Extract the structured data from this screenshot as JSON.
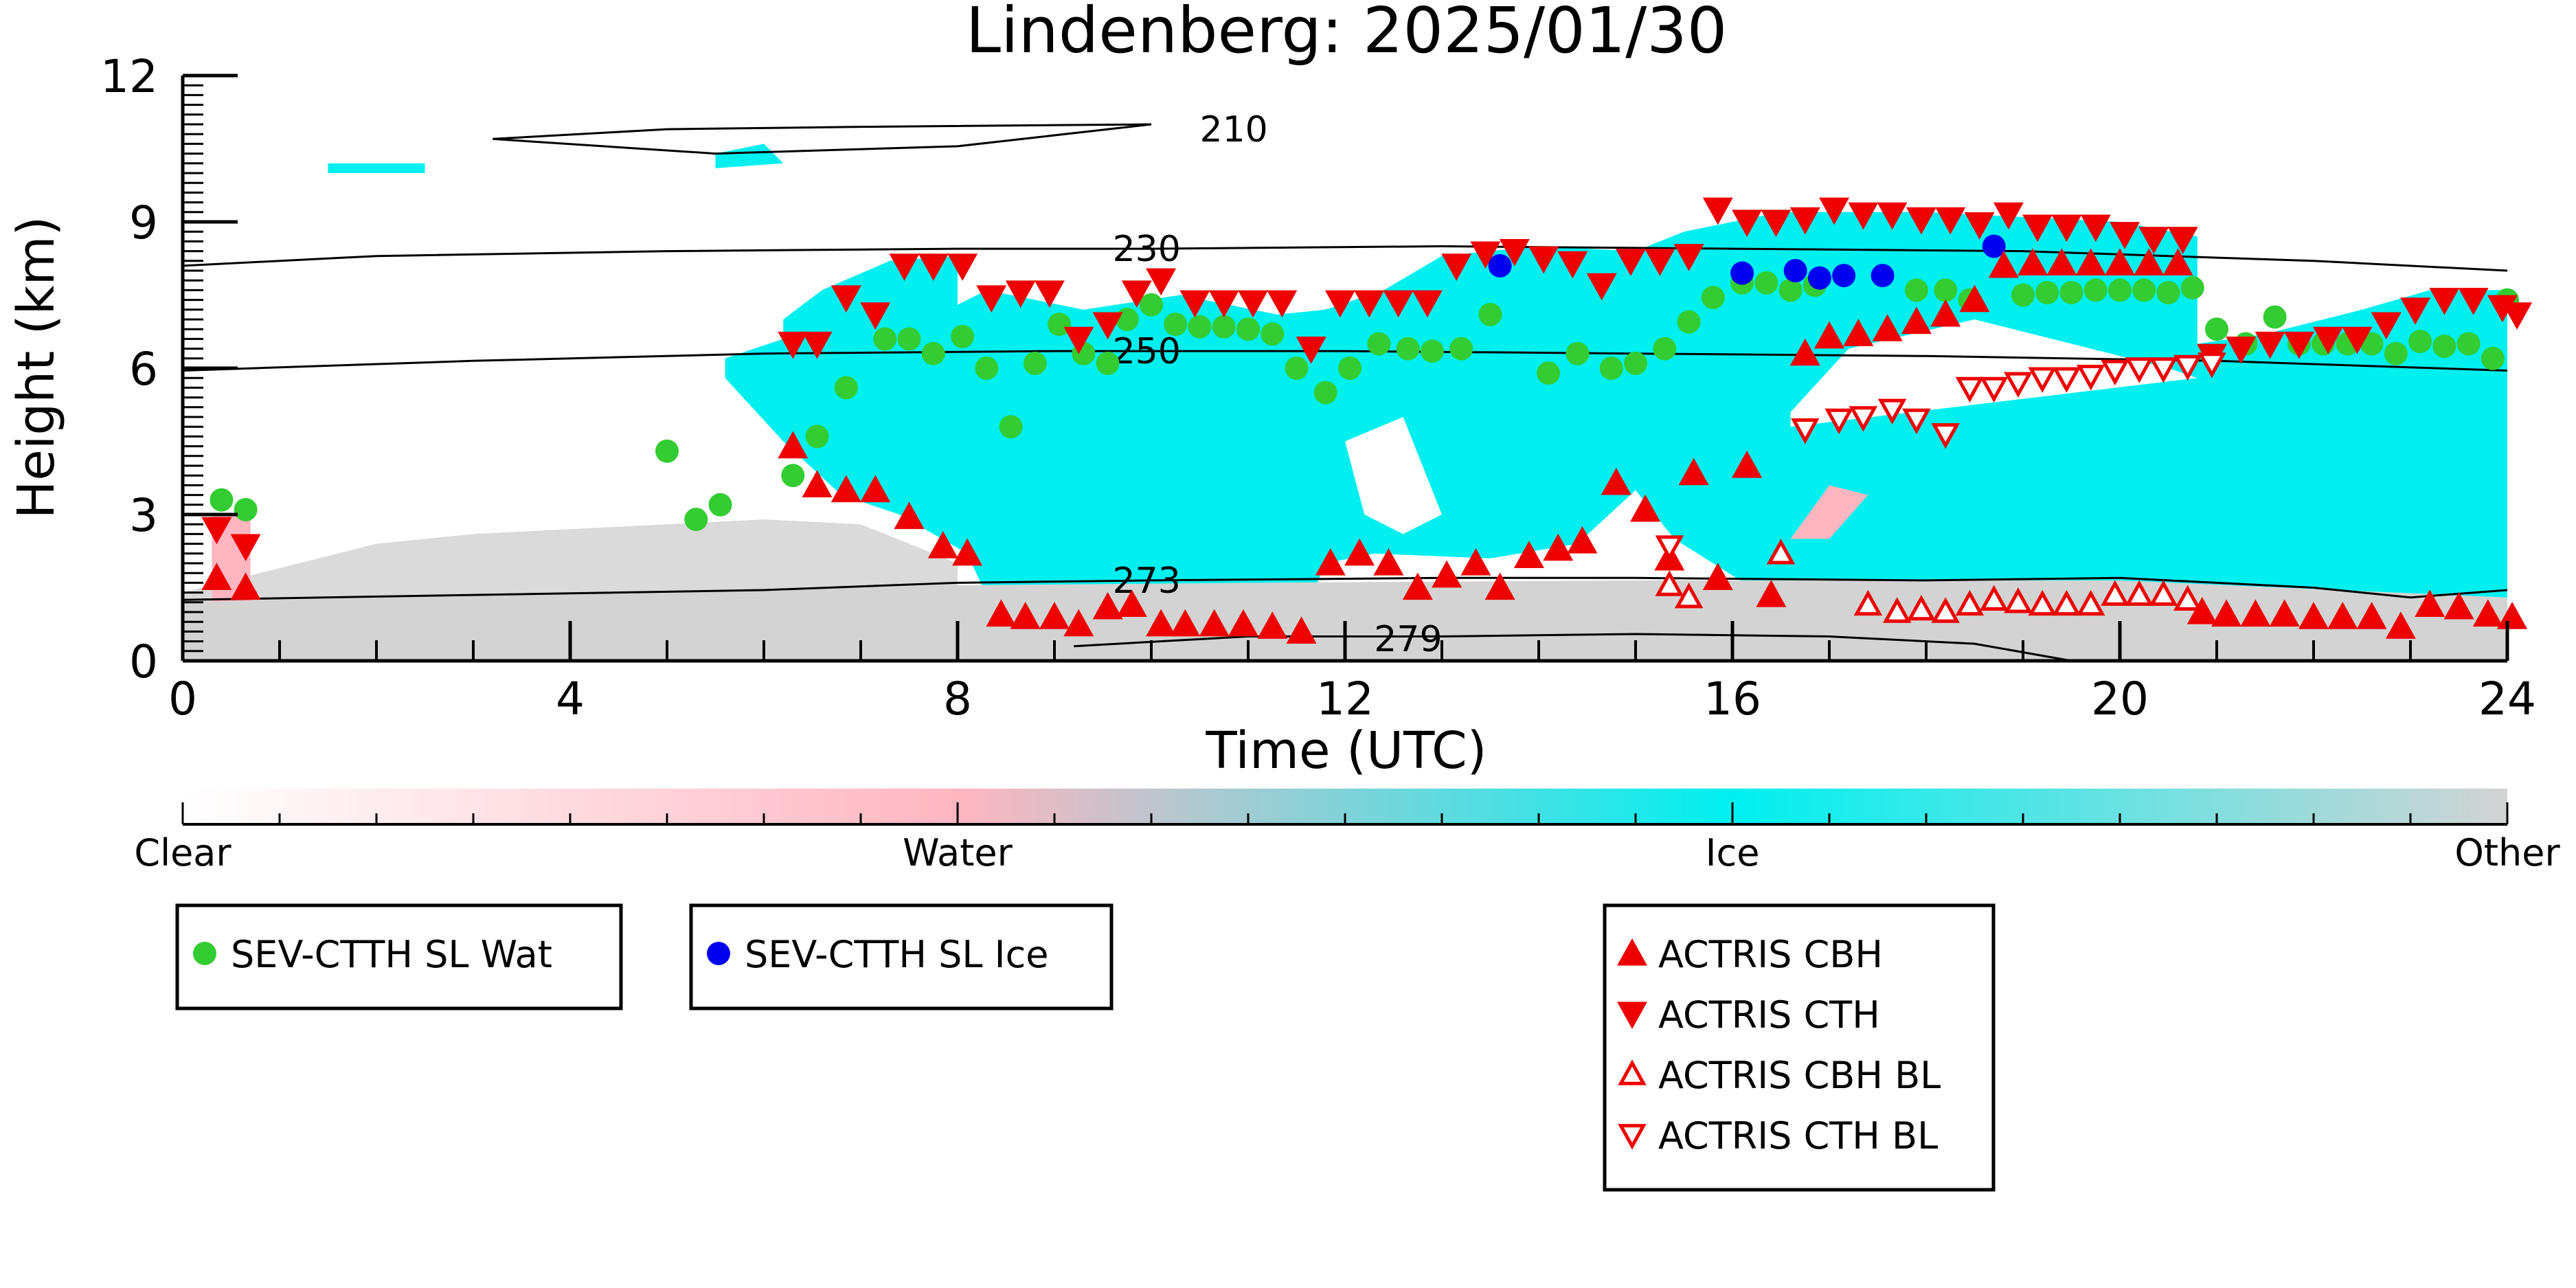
{
  "chart_data": {
    "type": "scatter",
    "title": "Lindenberg: 2025/01/30",
    "xlabel": "Time (UTC)",
    "ylabel": "Height (km)",
    "xlim": [
      0,
      24
    ],
    "ylim": [
      0,
      12
    ],
    "x_ticks": [
      "0",
      "4",
      "8",
      "12",
      "16",
      "20",
      "24"
    ],
    "y_ticks": [
      "0",
      "3",
      "6",
      "9",
      "12"
    ],
    "colorbar": {
      "labels": [
        "Clear",
        "Water",
        "Ice",
        "Other"
      ],
      "colors": [
        "#ffffff",
        "#ffb6c1",
        "#00f0f0",
        "#d3d3d3"
      ]
    },
    "contours": [
      {
        "label": "210",
        "points": [
          [
            3.2,
            10.7
          ],
          [
            5,
            10.9
          ],
          [
            7,
            10.95
          ],
          [
            10,
            11.0
          ],
          [
            8,
            10.55
          ],
          [
            5.5,
            10.4
          ],
          [
            3.2,
            10.7
          ]
        ],
        "label_at": [
          10.5,
          10.9
        ]
      },
      {
        "label": "230",
        "points": [
          [
            0,
            8.1
          ],
          [
            2,
            8.3
          ],
          [
            5,
            8.4
          ],
          [
            8,
            8.45
          ],
          [
            10,
            8.45
          ],
          [
            13,
            8.5
          ],
          [
            16,
            8.45
          ],
          [
            19,
            8.4
          ],
          [
            22,
            8.2
          ],
          [
            24,
            8.0
          ]
        ],
        "label_at": [
          9.6,
          8.45
        ]
      },
      {
        "label": "250",
        "points": [
          [
            0,
            5.95
          ],
          [
            3,
            6.15
          ],
          [
            6,
            6.3
          ],
          [
            9,
            6.35
          ],
          [
            12,
            6.35
          ],
          [
            15,
            6.3
          ],
          [
            18,
            6.25
          ],
          [
            21,
            6.15
          ],
          [
            24,
            5.95
          ]
        ],
        "label_at": [
          9.6,
          6.35
        ]
      },
      {
        "label": "273",
        "points": [
          [
            0,
            1.25
          ],
          [
            3,
            1.35
          ],
          [
            6,
            1.45
          ],
          [
            8,
            1.6
          ],
          [
            10,
            1.65
          ],
          [
            13,
            1.7
          ],
          [
            15,
            1.7
          ],
          [
            18,
            1.65
          ],
          [
            20,
            1.7
          ],
          [
            22,
            1.5
          ],
          [
            23,
            1.3
          ],
          [
            24,
            1.45
          ]
        ],
        "label_at": [
          9.6,
          1.65
        ]
      },
      {
        "label": "279",
        "points": [
          [
            9.2,
            0.3
          ],
          [
            11,
            0.5
          ],
          [
            13,
            0.5
          ],
          [
            15,
            0.55
          ],
          [
            17,
            0.5
          ],
          [
            18.5,
            0.35
          ],
          [
            19.5,
            0.0
          ]
        ],
        "label_at": [
          12.3,
          0.45
        ]
      }
    ],
    "series": [
      {
        "name": "SEV-CTTH SL Wat",
        "marker": "circle",
        "color": "#33cc33",
        "points": [
          [
            0.4,
            3.3
          ],
          [
            0.65,
            3.1
          ],
          [
            5.0,
            4.3
          ],
          [
            5.3,
            2.9
          ],
          [
            5.55,
            3.2
          ],
          [
            6.3,
            3.8
          ],
          [
            6.55,
            4.6
          ],
          [
            6.85,
            5.6
          ],
          [
            7.25,
            6.6
          ],
          [
            7.5,
            6.6
          ],
          [
            7.75,
            6.3
          ],
          [
            8.05,
            6.65
          ],
          [
            8.3,
            6.0
          ],
          [
            8.55,
            4.8
          ],
          [
            8.8,
            6.1
          ],
          [
            9.05,
            6.9
          ],
          [
            9.3,
            6.3
          ],
          [
            9.55,
            6.1
          ],
          [
            9.75,
            7.0
          ],
          [
            10.0,
            7.3
          ],
          [
            10.25,
            6.9
          ],
          [
            10.5,
            6.85
          ],
          [
            10.75,
            6.85
          ],
          [
            11.0,
            6.8
          ],
          [
            11.25,
            6.7
          ],
          [
            11.5,
            6.0
          ],
          [
            11.8,
            5.5
          ],
          [
            12.05,
            6.0
          ],
          [
            12.35,
            6.5
          ],
          [
            12.65,
            6.4
          ],
          [
            12.9,
            6.35
          ],
          [
            13.2,
            6.4
          ],
          [
            13.5,
            7.1
          ],
          [
            14.1,
            5.9
          ],
          [
            14.4,
            6.3
          ],
          [
            14.75,
            6.0
          ],
          [
            15.0,
            6.1
          ],
          [
            15.3,
            6.4
          ],
          [
            15.55,
            6.95
          ],
          [
            15.8,
            7.45
          ],
          [
            16.1,
            7.75
          ],
          [
            16.35,
            7.75
          ],
          [
            16.6,
            7.6
          ],
          [
            16.85,
            7.7
          ],
          [
            17.9,
            7.6
          ],
          [
            18.2,
            7.6
          ],
          [
            18.45,
            7.4
          ],
          [
            19.0,
            7.5
          ],
          [
            19.25,
            7.55
          ],
          [
            19.5,
            7.55
          ],
          [
            19.75,
            7.6
          ],
          [
            20.0,
            7.6
          ],
          [
            20.25,
            7.6
          ],
          [
            20.5,
            7.55
          ],
          [
            20.75,
            7.65
          ],
          [
            21.0,
            6.8
          ],
          [
            21.3,
            6.5
          ],
          [
            21.6,
            7.05
          ],
          [
            21.85,
            6.5
          ],
          [
            22.1,
            6.5
          ],
          [
            22.35,
            6.5
          ],
          [
            22.6,
            6.5
          ],
          [
            22.85,
            6.3
          ],
          [
            23.1,
            6.55
          ],
          [
            23.35,
            6.45
          ],
          [
            23.6,
            6.5
          ],
          [
            23.85,
            6.2
          ],
          [
            24.0,
            7.4
          ]
        ]
      },
      {
        "name": "SEV-CTTH SL Ice",
        "marker": "circle",
        "color": "#0000ee",
        "points": [
          [
            13.6,
            8.1
          ],
          [
            16.1,
            7.95
          ],
          [
            16.65,
            8.0
          ],
          [
            16.9,
            7.85
          ],
          [
            17.15,
            7.9
          ],
          [
            17.55,
            7.9
          ],
          [
            18.7,
            8.5
          ]
        ]
      },
      {
        "name": "ACTRIS CBH",
        "marker": "triangle-up",
        "color": "#ee0000",
        "points": [
          [
            0.35,
            1.7
          ],
          [
            0.65,
            1.5
          ],
          [
            6.3,
            4.4
          ],
          [
            6.55,
            3.6
          ],
          [
            6.85,
            3.5
          ],
          [
            7.15,
            3.5
          ],
          [
            7.5,
            2.95
          ],
          [
            7.85,
            2.35
          ],
          [
            8.1,
            2.2
          ],
          [
            8.45,
            0.95
          ],
          [
            8.7,
            0.9
          ],
          [
            9.0,
            0.9
          ],
          [
            9.25,
            0.75
          ],
          [
            9.55,
            1.1
          ],
          [
            9.8,
            1.15
          ],
          [
            10.1,
            0.75
          ],
          [
            10.35,
            0.75
          ],
          [
            10.65,
            0.75
          ],
          [
            10.95,
            0.75
          ],
          [
            11.25,
            0.7
          ],
          [
            11.55,
            0.6
          ],
          [
            11.85,
            2.0
          ],
          [
            12.15,
            2.2
          ],
          [
            12.45,
            2.0
          ],
          [
            12.75,
            1.5
          ],
          [
            13.05,
            1.75
          ],
          [
            13.35,
            2.0
          ],
          [
            13.6,
            1.5
          ],
          [
            13.9,
            2.15
          ],
          [
            14.2,
            2.3
          ],
          [
            14.45,
            2.45
          ],
          [
            14.8,
            3.65
          ],
          [
            15.1,
            3.1
          ],
          [
            15.35,
            2.1
          ],
          [
            15.6,
            3.85
          ],
          [
            15.85,
            1.7
          ],
          [
            16.15,
            4.0
          ],
          [
            16.4,
            1.35
          ],
          [
            16.75,
            6.3
          ],
          [
            17.0,
            6.65
          ],
          [
            17.3,
            6.7
          ],
          [
            17.6,
            6.8
          ],
          [
            17.9,
            6.95
          ],
          [
            18.2,
            7.1
          ],
          [
            18.5,
            7.4
          ],
          [
            18.8,
            8.1
          ],
          [
            19.1,
            8.15
          ],
          [
            19.4,
            8.15
          ],
          [
            19.7,
            8.15
          ],
          [
            20.0,
            8.15
          ],
          [
            20.3,
            8.15
          ],
          [
            20.6,
            8.15
          ],
          [
            20.85,
            1.0
          ],
          [
            21.1,
            0.95
          ],
          [
            21.4,
            0.95
          ],
          [
            21.7,
            0.95
          ],
          [
            22.0,
            0.9
          ],
          [
            22.3,
            0.9
          ],
          [
            22.6,
            0.9
          ],
          [
            22.9,
            0.7
          ],
          [
            23.2,
            1.15
          ],
          [
            23.5,
            1.1
          ],
          [
            23.8,
            0.95
          ],
          [
            24.05,
            0.9
          ]
        ]
      },
      {
        "name": "ACTRIS CTH",
        "marker": "triangle-down",
        "color": "#ee0000",
        "points": [
          [
            0.35,
            2.7
          ],
          [
            0.65,
            2.35
          ],
          [
            6.3,
            6.5
          ],
          [
            6.55,
            6.5
          ],
          [
            6.85,
            7.45
          ],
          [
            7.15,
            7.1
          ],
          [
            7.45,
            8.1
          ],
          [
            7.75,
            8.1
          ],
          [
            8.05,
            8.1
          ],
          [
            8.35,
            7.45
          ],
          [
            8.65,
            7.55
          ],
          [
            8.95,
            7.55
          ],
          [
            9.25,
            6.6
          ],
          [
            9.55,
            6.9
          ],
          [
            9.85,
            7.55
          ],
          [
            10.1,
            7.8
          ],
          [
            10.45,
            7.35
          ],
          [
            10.75,
            7.35
          ],
          [
            11.05,
            7.35
          ],
          [
            11.35,
            7.35
          ],
          [
            11.65,
            6.4
          ],
          [
            11.95,
            7.35
          ],
          [
            12.25,
            7.35
          ],
          [
            12.55,
            7.35
          ],
          [
            12.85,
            7.35
          ],
          [
            13.15,
            8.1
          ],
          [
            13.45,
            8.35
          ],
          [
            13.75,
            8.4
          ],
          [
            14.05,
            8.25
          ],
          [
            14.35,
            8.15
          ],
          [
            14.65,
            7.7
          ],
          [
            14.95,
            8.2
          ],
          [
            15.25,
            8.2
          ],
          [
            15.55,
            8.3
          ],
          [
            15.85,
            9.25
          ],
          [
            16.15,
            9.0
          ],
          [
            16.45,
            9.0
          ],
          [
            16.75,
            9.05
          ],
          [
            17.05,
            9.25
          ],
          [
            17.35,
            9.15
          ],
          [
            17.65,
            9.15
          ],
          [
            17.95,
            9.05
          ],
          [
            18.25,
            9.05
          ],
          [
            18.55,
            8.95
          ],
          [
            18.85,
            9.15
          ],
          [
            19.15,
            8.9
          ],
          [
            19.45,
            8.9
          ],
          [
            19.75,
            8.9
          ],
          [
            20.05,
            8.75
          ],
          [
            20.35,
            8.65
          ],
          [
            20.65,
            8.65
          ],
          [
            20.95,
            6.25
          ],
          [
            21.25,
            6.4
          ],
          [
            21.55,
            6.5
          ],
          [
            21.85,
            6.5
          ],
          [
            22.15,
            6.6
          ],
          [
            22.45,
            6.6
          ],
          [
            22.75,
            6.9
          ],
          [
            23.05,
            7.2
          ],
          [
            23.35,
            7.4
          ],
          [
            23.65,
            7.4
          ],
          [
            23.95,
            7.25
          ],
          [
            24.1,
            7.1
          ]
        ]
      },
      {
        "name": "ACTRIS CBH BL",
        "marker": "triangle-up-open",
        "color": "#ee0000",
        "points": [
          [
            15.35,
            1.55
          ],
          [
            15.55,
            1.3
          ],
          [
            16.5,
            2.2
          ],
          [
            17.4,
            1.15
          ],
          [
            17.7,
            1.0
          ],
          [
            17.95,
            1.05
          ],
          [
            18.2,
            1.0
          ],
          [
            18.45,
            1.15
          ],
          [
            18.7,
            1.25
          ],
          [
            18.95,
            1.2
          ],
          [
            19.2,
            1.15
          ],
          [
            19.45,
            1.15
          ],
          [
            19.7,
            1.15
          ],
          [
            19.95,
            1.35
          ],
          [
            20.2,
            1.35
          ],
          [
            20.45,
            1.35
          ],
          [
            20.7,
            1.25
          ]
        ]
      },
      {
        "name": "ACTRIS CTH BL",
        "marker": "triangle-down-open",
        "color": "#ee0000",
        "points": [
          [
            15.35,
            2.35
          ],
          [
            16.75,
            4.75
          ],
          [
            17.1,
            4.95
          ],
          [
            17.35,
            5.0
          ],
          [
            17.65,
            5.15
          ],
          [
            17.9,
            4.95
          ],
          [
            18.2,
            4.65
          ],
          [
            18.45,
            5.6
          ],
          [
            18.7,
            5.6
          ],
          [
            18.95,
            5.7
          ],
          [
            19.2,
            5.8
          ],
          [
            19.45,
            5.8
          ],
          [
            19.7,
            5.85
          ],
          [
            19.95,
            5.95
          ],
          [
            20.2,
            6.0
          ],
          [
            20.45,
            6.0
          ],
          [
            20.7,
            6.05
          ],
          [
            20.95,
            6.1
          ]
        ]
      }
    ],
    "legend_groups": [
      [
        "SEV-CTTH SL Wat"
      ],
      [
        "SEV-CTTH SL Ice"
      ],
      [
        "ACTRIS CBH",
        "ACTRIS CTH",
        "ACTRIS CBH BL",
        "ACTRIS CTH BL"
      ]
    ]
  }
}
